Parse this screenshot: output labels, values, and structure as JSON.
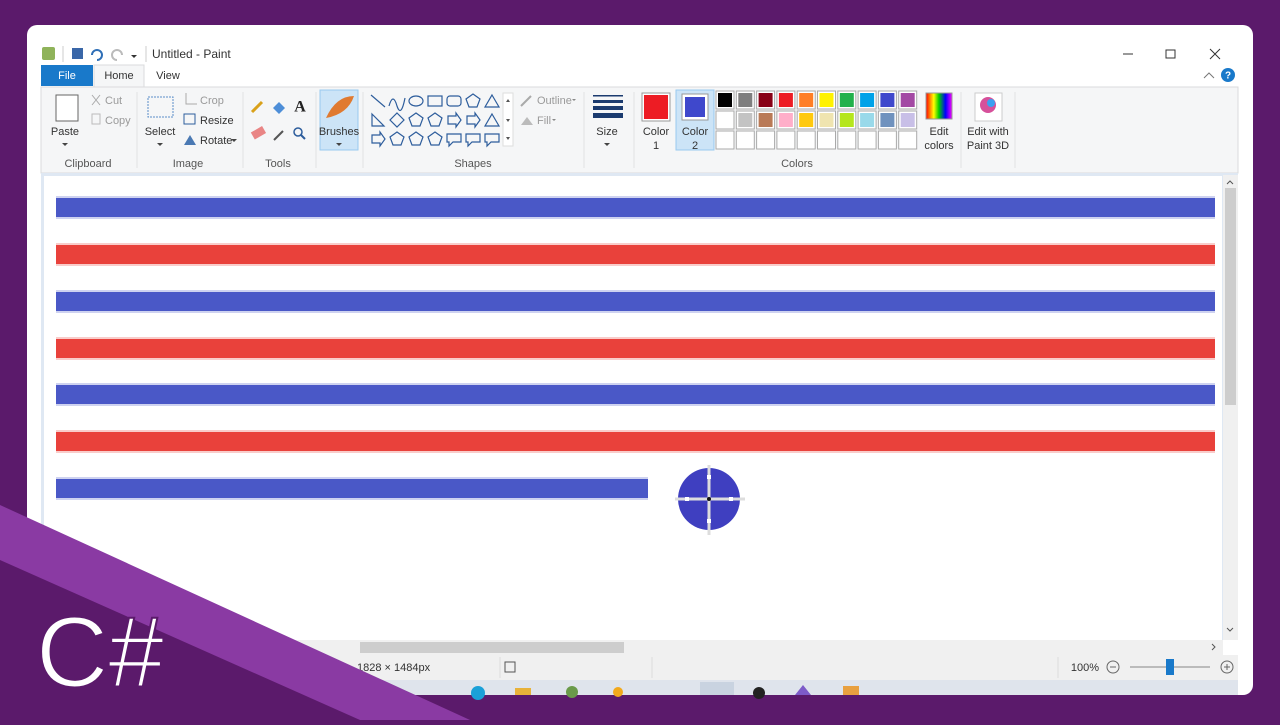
{
  "window": {
    "title": "Untitled - Paint"
  },
  "tabs": [
    "File",
    "Home",
    "View"
  ],
  "ribbon": {
    "clipboard": {
      "paste": "Paste",
      "cut": "Cut",
      "copy": "Copy",
      "label": "Clipboard"
    },
    "image": {
      "select": "Select",
      "crop": "Crop",
      "resize": "Resize",
      "rotate": "Rotate",
      "label": "Image"
    },
    "tools": {
      "label": "Tools"
    },
    "brushes": "Brushes",
    "shapes": {
      "outline": "Outline",
      "fill": "Fill",
      "label": "Shapes"
    },
    "size": "Size",
    "color1": [
      "Color",
      "1"
    ],
    "color2": [
      "Color",
      "2"
    ],
    "edit_colors": [
      "Edit",
      "colors"
    ],
    "colors_label": "Colors",
    "paint3d": [
      "Edit with",
      "Paint 3D"
    ]
  },
  "status": {
    "dimensions": "1828 × 1484px",
    "zoom": "100%"
  },
  "overlay": {
    "text": "C#"
  }
}
